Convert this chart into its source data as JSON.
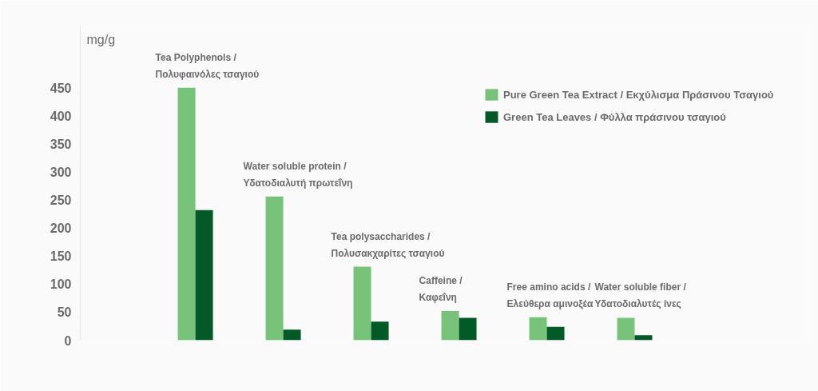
{
  "chart_data": {
    "type": "bar",
    "ylabel": "mg/g",
    "categories": [
      "Tea Polyphenols /\nΠολυφαινόλες τσαγιού",
      "Water soluble protein /\nΥδατοδιαλυτή πρωτεΐνη",
      "Tea polysaccharides /\nΠολυσακχαρίτες τσαγιού",
      "Caffeine /\nΚαφεΐνη",
      "Free amino acids /\nΕλεύθερα αμινοξέα",
      "Water soluble fiber /\nΥδατοδιαλυτές ίνες"
    ],
    "series": [
      {
        "name": "Pure Green Tea Extract / Εκχύλισμα Πράσινου Τσαγιού",
        "color": "#77c37a",
        "values": [
          450,
          256,
          131,
          52,
          41,
          40
        ]
      },
      {
        "name": "Green Tea Leaves / Φύλλα πράσινου τσαγιού",
        "color": "#025a26",
        "values": [
          232,
          19,
          33,
          40,
          24,
          9
        ]
      }
    ],
    "ylim": [
      0,
      560
    ],
    "yticks": [
      0,
      50,
      100,
      150,
      200,
      250,
      300,
      350,
      400,
      450
    ],
    "grid": false,
    "legend": "top right"
  }
}
